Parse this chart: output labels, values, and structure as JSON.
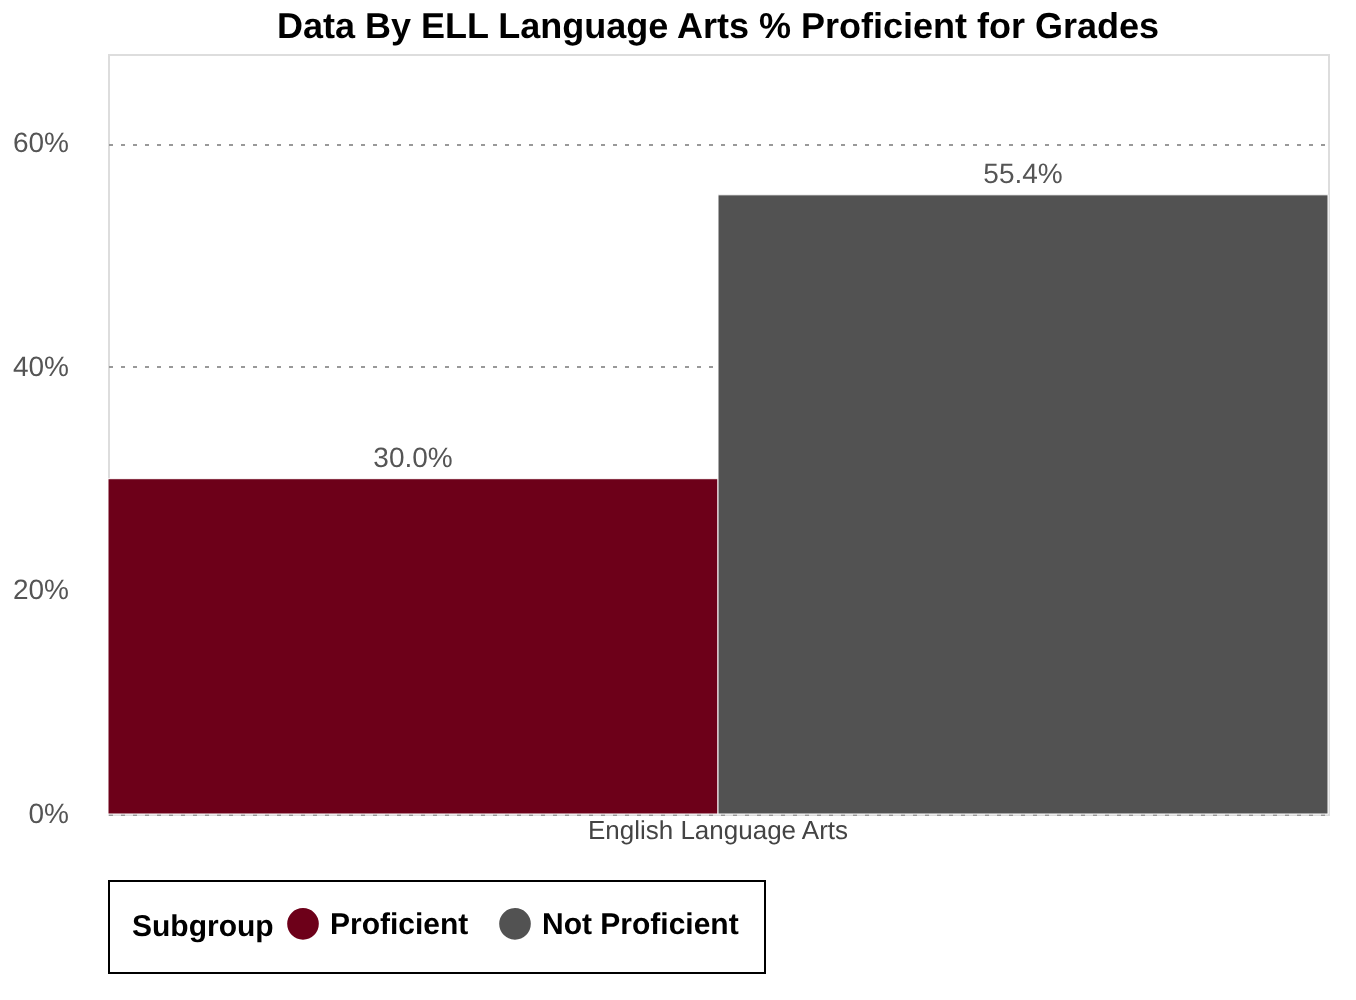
{
  "chart_data": {
    "type": "bar",
    "title": "Data By ELL Language Arts % Proficient for Grades",
    "categories": [
      "English Language Arts"
    ],
    "series": [
      {
        "name": "Proficient",
        "color": "#6d0019",
        "values": [
          30.0
        ]
      },
      {
        "name": "Not Proficient",
        "color": "#525252",
        "values": [
          55.4
        ]
      }
    ],
    "value_labels": [
      [
        "30.0%"
      ],
      [
        "55.4%"
      ]
    ],
    "legend_title": "Subgroup",
    "legend": "bottom",
    "ylim": [
      0,
      68
    ],
    "yticks": [
      {
        "value": 0,
        "label": "0%"
      },
      {
        "value": 20,
        "label": "20%"
      },
      {
        "value": 40,
        "label": "40%"
      },
      {
        "value": 60,
        "label": "60%"
      }
    ],
    "grid": "y"
  }
}
